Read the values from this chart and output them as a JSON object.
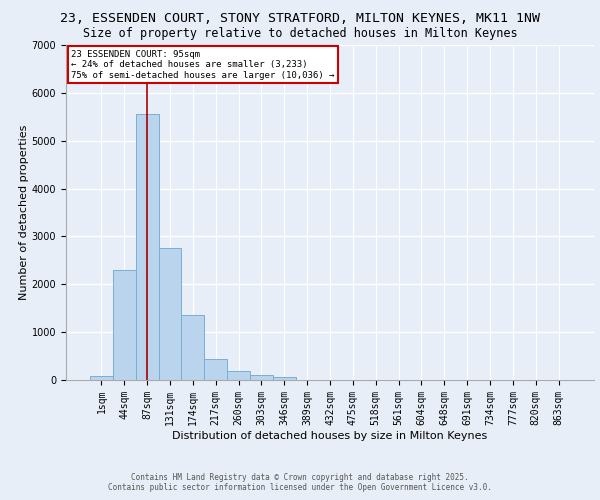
{
  "title_line1": "23, ESSENDEN COURT, STONY STRATFORD, MILTON KEYNES, MK11 1NW",
  "title_line2": "Size of property relative to detached houses in Milton Keynes",
  "xlabel": "Distribution of detached houses by size in Milton Keynes",
  "ylabel": "Number of detached properties",
  "bin_labels": [
    "1sqm",
    "44sqm",
    "87sqm",
    "131sqm",
    "174sqm",
    "217sqm",
    "260sqm",
    "303sqm",
    "346sqm",
    "389sqm",
    "432sqm",
    "475sqm",
    "518sqm",
    "561sqm",
    "604sqm",
    "648sqm",
    "691sqm",
    "734sqm",
    "777sqm",
    "820sqm",
    "863sqm"
  ],
  "bar_heights": [
    90,
    2300,
    5550,
    2750,
    1350,
    430,
    190,
    105,
    70,
    0,
    0,
    0,
    0,
    0,
    0,
    0,
    0,
    0,
    0,
    0,
    0
  ],
  "bar_color": "#bad4ee",
  "bar_edgecolor": "#7aaed4",
  "ylim": [
    0,
    7000
  ],
  "yticks": [
    0,
    1000,
    2000,
    3000,
    4000,
    5000,
    6000,
    7000
  ],
  "vline_color": "#aa0000",
  "vline_x_index": 2.0,
  "annotation_title": "23 ESSENDEN COURT: 95sqm",
  "annotation_line2": "← 24% of detached houses are smaller (3,233)",
  "annotation_line3": "75% of semi-detached houses are larger (10,036) →",
  "annotation_box_facecolor": "#ffffff",
  "annotation_box_edgecolor": "#cc0000",
  "footer_line1": "Contains HM Land Registry data © Crown copyright and database right 2025.",
  "footer_line2": "Contains public sector information licensed under the Open Government Licence v3.0.",
  "background_color": "#e8eef8",
  "plot_background": "#e8eef8",
  "grid_color": "#ffffff",
  "title_fontsize": 9.5,
  "subtitle_fontsize": 8.5,
  "axis_label_fontsize": 8,
  "tick_fontsize": 7,
  "footer_fontsize": 5.5
}
